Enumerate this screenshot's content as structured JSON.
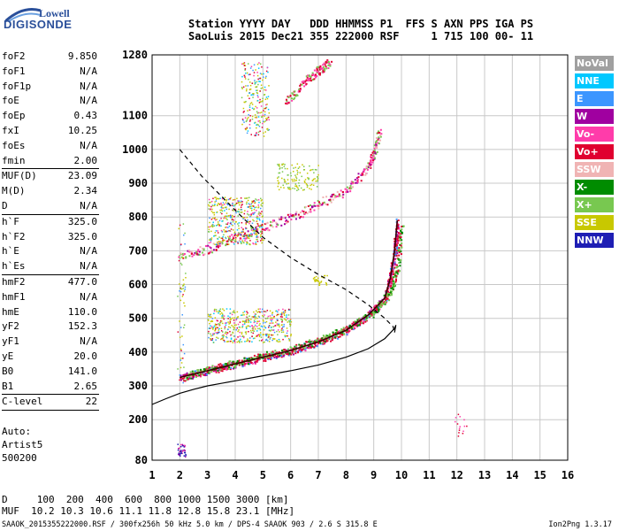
{
  "logo": {
    "line1": "Lowell",
    "line2": "DIGISONDE"
  },
  "header": {
    "line1": "Station YYYY DAY   DDD HHMMSS P1  FFS S AXN PPS IGA PS",
    "line2": "SaoLuis 2015 Dec21 355 222000 RSF     1 715 100 00- 11"
  },
  "params": [
    {
      "k": "foF2",
      "v": "9.850"
    },
    {
      "k": "foF1",
      "v": "N/A"
    },
    {
      "k": "foF1p",
      "v": "N/A"
    },
    {
      "k": "foE",
      "v": "N/A"
    },
    {
      "k": "foEp",
      "v": "0.43"
    },
    {
      "k": "fxI",
      "v": "10.25"
    },
    {
      "k": "foEs",
      "v": "N/A"
    },
    {
      "k": "fmin",
      "v": "2.00"
    },
    {
      "sep": true
    },
    {
      "k": "MUF(D)",
      "v": "23.09"
    },
    {
      "k": "M(D)",
      "v": "2.34"
    },
    {
      "k": "D",
      "v": "N/A"
    },
    {
      "sep": true
    },
    {
      "k": "h`F",
      "v": "325.0"
    },
    {
      "k": "h`F2",
      "v": "325.0"
    },
    {
      "k": "h`E",
      "v": "N/A"
    },
    {
      "k": "h`Es",
      "v": "N/A"
    },
    {
      "sep": true
    },
    {
      "k": "hmF2",
      "v": "477.0"
    },
    {
      "k": "hmF1",
      "v": "N/A"
    },
    {
      "k": "hmE",
      "v": "110.0"
    },
    {
      "k": "yF2",
      "v": "152.3"
    },
    {
      "k": "yF1",
      "v": "N/A"
    },
    {
      "k": "yE",
      "v": "20.0"
    },
    {
      "k": "B0",
      "v": "141.0"
    },
    {
      "k": "B1",
      "v": "2.65"
    },
    {
      "sep": true
    },
    {
      "k": "C-level",
      "v": "22"
    },
    {
      "sep": true
    }
  ],
  "auto": {
    "l1": "Auto:",
    "l2": "Artist5",
    "l3": "500200"
  },
  "legend": [
    {
      "name": "NoVal",
      "color": "#a0a0a0"
    },
    {
      "name": "NNE",
      "color": "#00c8ff"
    },
    {
      "name": "E",
      "color": "#3c96ff"
    },
    {
      "name": "W",
      "color": "#a000a0"
    },
    {
      "name": "Vo-",
      "color": "#ff3caa"
    },
    {
      "name": "Vo+",
      "color": "#e00030"
    },
    {
      "name": "SSW",
      "color": "#f0b4b4"
    },
    {
      "name": "X-",
      "color": "#008c00"
    },
    {
      "name": "X+",
      "color": "#78c850"
    },
    {
      "name": "SSE",
      "color": "#c8c800"
    },
    {
      "name": "NNW",
      "color": "#1e1eb4"
    }
  ],
  "footer": {
    "line1": "D     100  200  400  600  800 1000 1500 3000 [km]",
    "line2": "MUF  10.2 10.3 10.6 11.1 11.8 12.8 15.8 23.1 [MHz]"
  },
  "bottom": "SAAOK_2015355222000.RSF / 300fx256h 50 kHz 5.0 km / DPS-4 SAAOK 903 / 2.6 S 315.8 E",
  "version": "Ion2Png 1.3.17",
  "chart_data": {
    "type": "scatter",
    "xlim": [
      1,
      16
    ],
    "ylim": [
      80,
      1280
    ],
    "x_ticks": [
      1,
      2,
      3,
      4,
      5,
      6,
      7,
      8,
      9,
      10,
      11,
      12,
      13,
      14,
      15,
      16
    ],
    "y_ticks": [
      80,
      200,
      300,
      400,
      500,
      600,
      700,
      800,
      900,
      1000,
      1100,
      1280
    ],
    "grid": true,
    "traces": {
      "profile_solid": [
        [
          1,
          245
        ],
        [
          1.5,
          262
        ],
        [
          2,
          278
        ],
        [
          2.5,
          290
        ],
        [
          3,
          300
        ],
        [
          4,
          315
        ],
        [
          5,
          330
        ],
        [
          6,
          345
        ],
        [
          7,
          362
        ],
        [
          8,
          385
        ],
        [
          8.8,
          410
        ],
        [
          9.4,
          440
        ],
        [
          9.75,
          470
        ],
        [
          9.8,
          480
        ],
        [
          9.75,
          458
        ]
      ],
      "profile_dashed": [
        [
          2,
          1000
        ],
        [
          2.8,
          920
        ],
        [
          4,
          820
        ],
        [
          5,
          740
        ],
        [
          6,
          680
        ],
        [
          7,
          630
        ],
        [
          8,
          585
        ],
        [
          8.8,
          540
        ],
        [
          9.4,
          500
        ],
        [
          9.7,
          475
        ],
        [
          9.75,
          458
        ]
      ],
      "o_trace": [
        [
          2,
          325
        ],
        [
          3,
          345
        ],
        [
          4,
          365
        ],
        [
          5,
          385
        ],
        [
          6,
          405
        ],
        [
          7,
          430
        ],
        [
          8,
          465
        ],
        [
          8.8,
          510
        ],
        [
          9.4,
          560
        ],
        [
          9.6,
          620
        ],
        [
          9.75,
          700
        ],
        [
          9.85,
          790
        ]
      ],
      "x_trace": [
        [
          2.2,
          330
        ],
        [
          3,
          350
        ],
        [
          4,
          368
        ],
        [
          5,
          390
        ],
        [
          6,
          410
        ],
        [
          7,
          435
        ],
        [
          8,
          470
        ],
        [
          9,
          520
        ],
        [
          9.6,
          580
        ],
        [
          9.85,
          650
        ],
        [
          10,
          780
        ]
      ],
      "multi_hop": [
        [
          2,
          690
        ],
        [
          3,
          705
        ],
        [
          4,
          740
        ],
        [
          5,
          770
        ],
        [
          6,
          800
        ],
        [
          7,
          840
        ],
        [
          8,
          880
        ],
        [
          8.7,
          940
        ],
        [
          9,
          990
        ],
        [
          9.2,
          1060
        ]
      ],
      "top_band": [
        [
          5.8,
          1140
        ],
        [
          6.5,
          1200
        ],
        [
          7,
          1235
        ],
        [
          7.4,
          1260
        ]
      ]
    }
  }
}
